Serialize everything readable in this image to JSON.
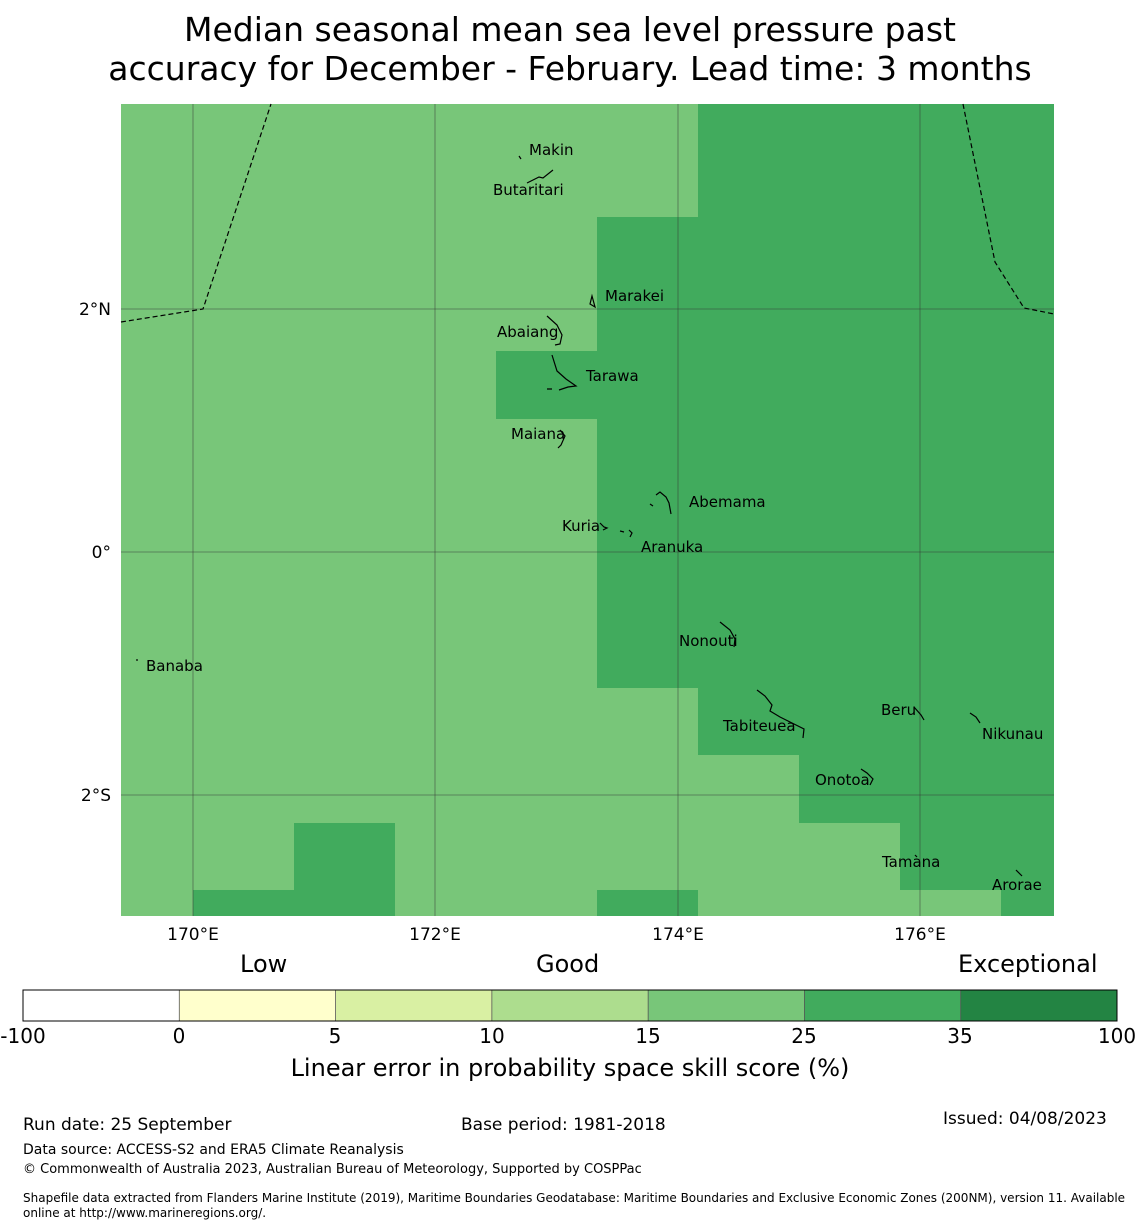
{
  "title": {
    "line1": "Median seasonal mean sea level pressure past",
    "line2": "accuracy for December - February. Lead time: 3 months"
  },
  "map": {
    "lat_labels": [
      "2°N",
      "0°",
      "2°S"
    ],
    "lon_labels": [
      "170°E",
      "172°E",
      "174°E",
      "176°E"
    ],
    "islands": [
      "Makin",
      "Butaritari",
      "Marakei",
      "Abaiang",
      "Tarawa",
      "Maiana",
      "Abemama",
      "Kuria",
      "Aranuka",
      "Banaba",
      "Nonouti",
      "Tabiteuea",
      "Beru",
      "Nikunau",
      "Onotoa",
      "Tamana",
      "Arorae"
    ],
    "colors": {
      "skill_15_25": "#78c679",
      "skill_25_35": "#41ab5d",
      "grid": "#333333"
    }
  },
  "colorbar": {
    "category_low": "Low",
    "category_good": "Good",
    "category_exceptional": "Exceptional",
    "boundaries": [
      "-100",
      "0",
      "5",
      "10",
      "15",
      "25",
      "35",
      "100"
    ],
    "colors": [
      "#ffffff",
      "#ffffcc",
      "#d9f0a3",
      "#addd8e",
      "#78c679",
      "#41ab5d",
      "#238443"
    ],
    "label": "Linear error in probability space skill score (%)"
  },
  "footer": {
    "run_date": "Run date: 25 September",
    "base_period": "Base period: 1981-2018",
    "issued": "Issued: 04/08/2023",
    "data_source": "Data source: ACCESS-S2 and ERA5 Climate Reanalysis",
    "copyright": "© Commonwealth of Australia 2023, Australian Bureau of Meteorology, Supported by COSPPac",
    "shapefile_line1": "Shapefile data extracted from Flanders Marine Institute (2019), Maritime Boundaries Geodatabase: Maritime Boundaries and Exclusive Economic Zones (200NM), version 11. Available",
    "shapefile_line2": "online at http://www.marineregions.org/."
  }
}
